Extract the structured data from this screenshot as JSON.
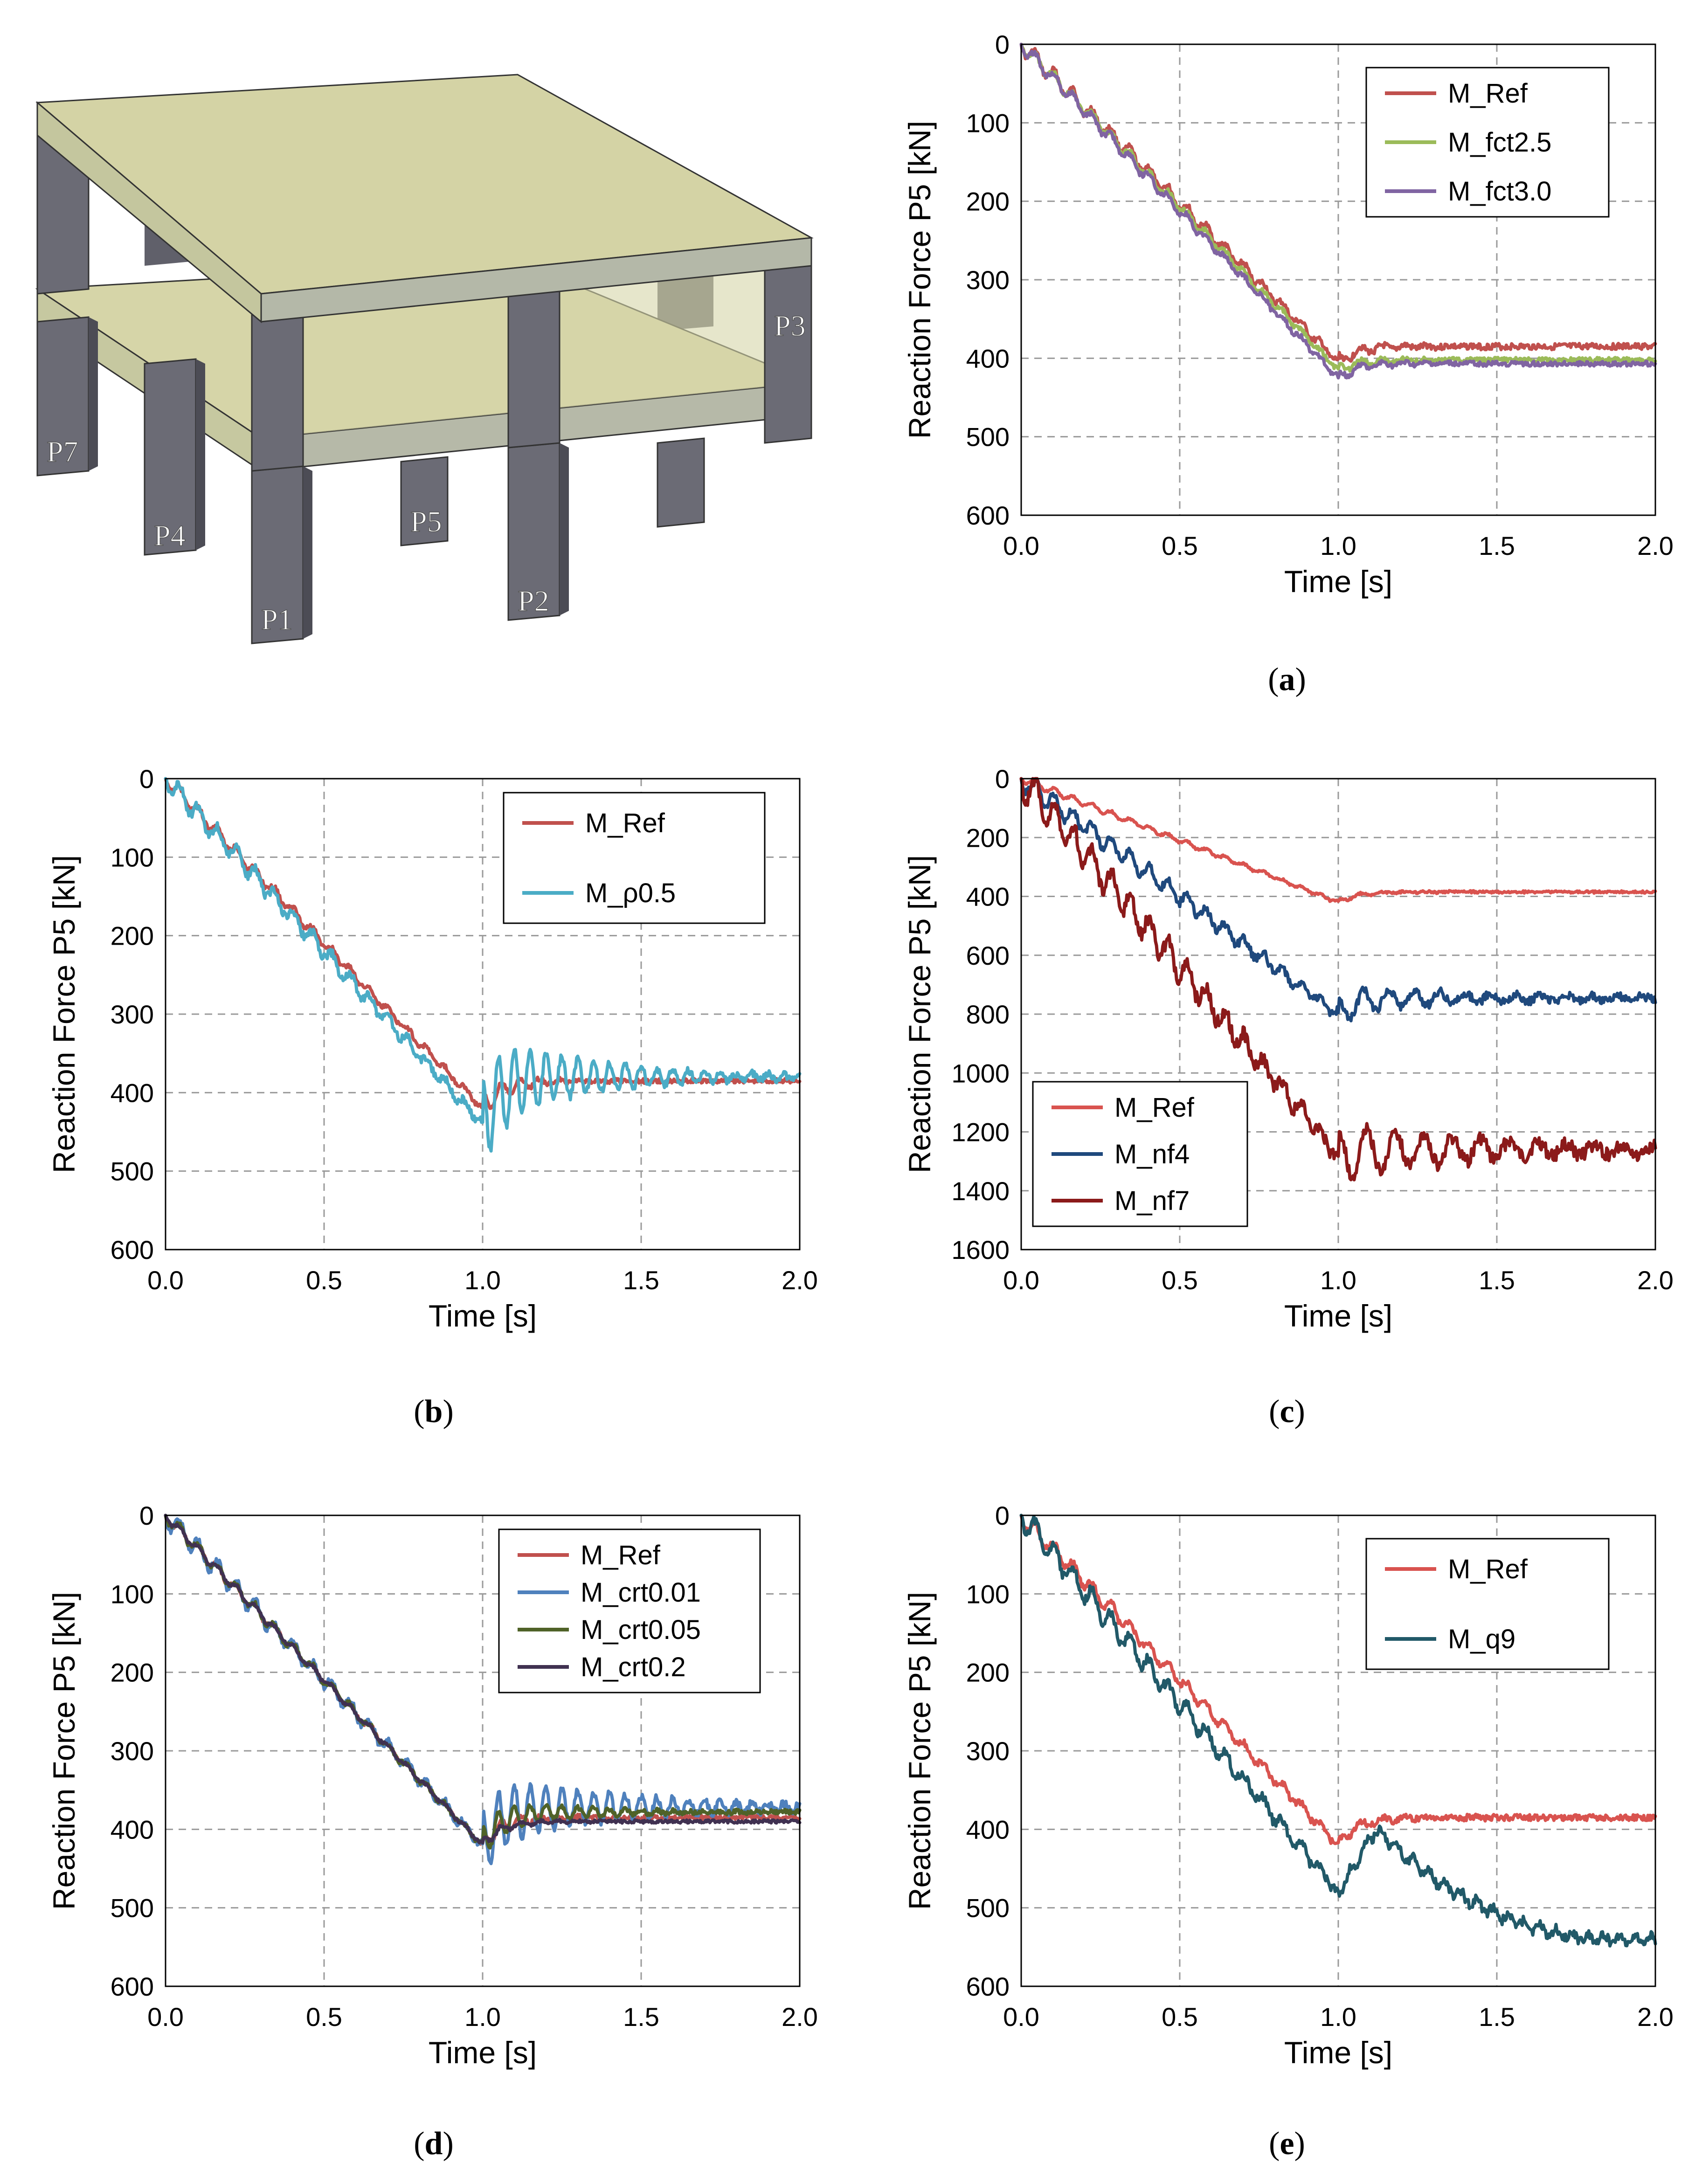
{
  "model_view": {
    "column_labels": [
      "P1",
      "P2",
      "P3",
      "P4",
      "P5",
      "P7"
    ]
  },
  "chart_data": [
    {
      "id": "a",
      "type": "line",
      "caption": "a",
      "xlabel": "Time [s]",
      "ylabel": "Reaction Force P5 [kN]",
      "xlim": [
        0.0,
        2.0
      ],
      "ylim": [
        0,
        600
      ],
      "y_inverted": true,
      "xticks": [
        "0.0",
        "0.5",
        "1.0",
        "1.5",
        "2.0"
      ],
      "yticks": [
        "0",
        "100",
        "200",
        "300",
        "400",
        "500",
        "600"
      ],
      "legend_position": "top-right",
      "series": [
        {
          "name": "M_Ref",
          "color": "#c0504d",
          "peak": 405,
          "plateau": 385,
          "osc": 8,
          "osc_period": 0.07,
          "decay": 6,
          "noise": 4
        },
        {
          "name": "M_fct2.5",
          "color": "#9bbb59",
          "peak": 415,
          "plateau": 402,
          "osc": 6,
          "osc_period": 0.07,
          "decay": 6,
          "noise": 3
        },
        {
          "name": "M_fct3.0",
          "color": "#8064a2",
          "peak": 425,
          "plateau": 407,
          "osc": 7,
          "osc_period": 0.07,
          "decay": 6,
          "noise": 3
        }
      ]
    },
    {
      "id": "b",
      "type": "line",
      "caption": "b",
      "xlabel": "Time [s]",
      "ylabel": "Reaction Force P5 [kN]",
      "xlim": [
        0.0,
        2.0
      ],
      "ylim": [
        0,
        600
      ],
      "y_inverted": true,
      "xticks": [
        "0.0",
        "0.5",
        "1.0",
        "1.5",
        "2.0"
      ],
      "yticks": [
        "0",
        "100",
        "200",
        "300",
        "400",
        "500",
        "600"
      ],
      "legend_position": "top-right",
      "series": [
        {
          "name": "M_Ref",
          "color": "#c0504d",
          "peak": 420,
          "plateau": 385,
          "osc": 18,
          "osc_period": 0.06,
          "decay": 8,
          "noise": 3
        },
        {
          "name": "M_ρ0.5",
          "color": "#4bacc6",
          "peak": 440,
          "plateau": 380,
          "osc": 60,
          "osc_period": 0.05,
          "decay": 3.2,
          "noise": 5
        }
      ]
    },
    {
      "id": "c",
      "type": "line",
      "caption": "c",
      "xlabel": "Time [s]",
      "ylabel": "Reaction Force P5 [kN]",
      "xlim": [
        0.0,
        2.0
      ],
      "ylim": [
        0,
        1600
      ],
      "y_inverted": true,
      "xticks": [
        "0.0",
        "0.5",
        "1.0",
        "1.5",
        "2.0"
      ],
      "yticks": [
        "0",
        "200",
        "400",
        "600",
        "800",
        "1000",
        "1200",
        "1400",
        "1600"
      ],
      "legend_position": "bottom-left",
      "series": [
        {
          "name": "M_Ref",
          "color": "#d9534f",
          "peak": 420,
          "plateau": 385,
          "osc": 8,
          "osc_period": 0.07,
          "decay": 6,
          "noise": 4
        },
        {
          "name": "M_nf4",
          "color": "#1f497d",
          "peak": 800,
          "plateau": 745,
          "osc": 45,
          "osc_period": 0.08,
          "decay": 2.2,
          "noise": 14
        },
        {
          "name": "M_nf7",
          "color": "#8b1a1a",
          "peak": 1280,
          "plateau": 1260,
          "osc": 90,
          "osc_period": 0.09,
          "decay": 2.0,
          "noise": 24
        }
      ]
    },
    {
      "id": "d",
      "type": "line",
      "caption": "d",
      "xlabel": "Time [s]",
      "ylabel": "Reaction Force P5 [kN]",
      "xlim": [
        0.0,
        2.0
      ],
      "ylim": [
        0,
        600
      ],
      "y_inverted": true,
      "xticks": [
        "0.0",
        "0.5",
        "1.0",
        "1.5",
        "2.0"
      ],
      "yticks": [
        "0",
        "100",
        "200",
        "300",
        "400",
        "500",
        "600"
      ],
      "legend_position": "top-right",
      "series": [
        {
          "name": "M_Ref",
          "color": "#c0504d",
          "peak": 420,
          "plateau": 385,
          "osc": 10,
          "osc_period": 0.06,
          "decay": 6,
          "noise": 3
        },
        {
          "name": "M_crt0.01",
          "color": "#4f81bd",
          "peak": 420,
          "plateau": 372,
          "osc": 45,
          "osc_period": 0.05,
          "decay": 2.4,
          "noise": 5
        },
        {
          "name": "M_crt0.05",
          "color": "#4f6228",
          "peak": 420,
          "plateau": 378,
          "osc": 20,
          "osc_period": 0.05,
          "decay": 4,
          "noise": 3
        },
        {
          "name": "M_crt0.2",
          "color": "#403151",
          "peak": 420,
          "plateau": 390,
          "osc": 8,
          "osc_period": 0.06,
          "decay": 8,
          "noise": 2
        }
      ]
    },
    {
      "id": "e",
      "type": "line",
      "caption": "e",
      "xlabel": "Time [s]",
      "ylabel": "Reaction Force P5 [kN]",
      "xlim": [
        0.0,
        2.0
      ],
      "ylim": [
        0,
        600
      ],
      "y_inverted": true,
      "xticks": [
        "0.0",
        "0.5",
        "1.0",
        "1.5",
        "2.0"
      ],
      "yticks": [
        "0",
        "100",
        "200",
        "300",
        "400",
        "500",
        "600"
      ],
      "legend_position": "top-right",
      "series": [
        {
          "name": "M_Ref",
          "color": "#d9534f",
          "peak": 420,
          "plateau": 385,
          "osc": 8,
          "osc_period": 0.07,
          "decay": 6,
          "noise": 4
        },
        {
          "name": "M_q9",
          "color": "#215968",
          "peak": 480,
          "plateau": 540,
          "osc": 0,
          "osc_period": 0.08,
          "decay": 3,
          "noise": 6,
          "rebound": 400,
          "rebound_t": 1.12
        }
      ]
    }
  ]
}
